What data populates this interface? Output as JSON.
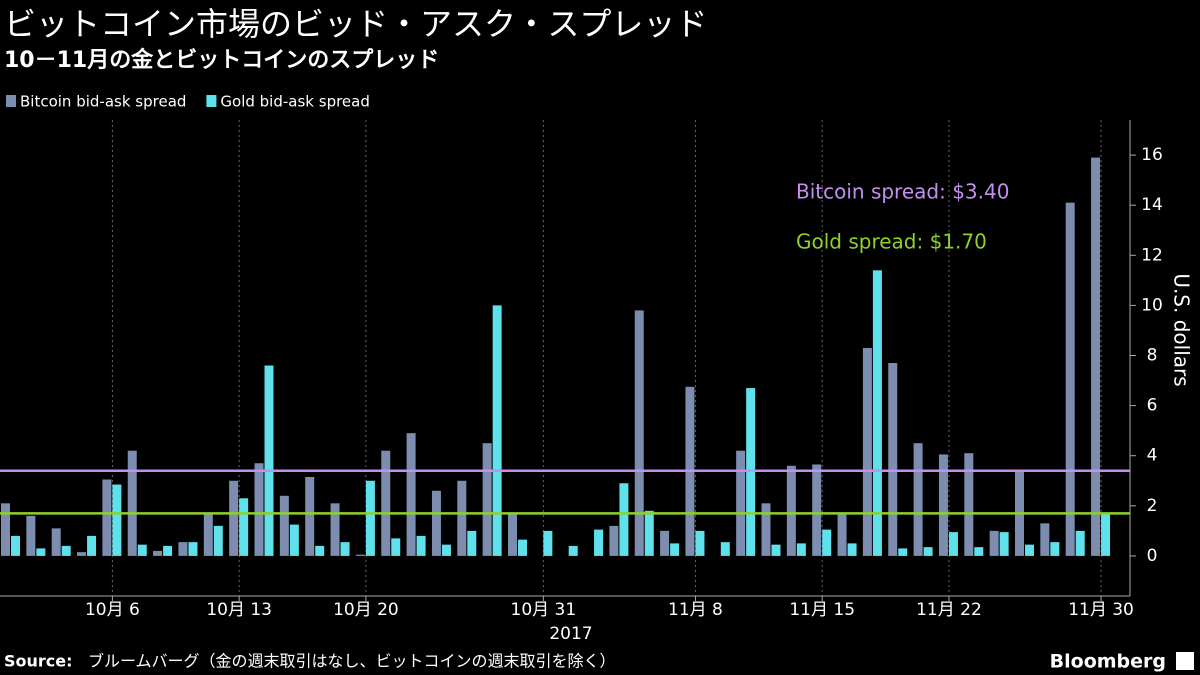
{
  "chart_data": {
    "type": "bar",
    "title": "ビットコイン市場のビッド・アスク・スプレッド",
    "subtitle": "10－11月の金とビットコインのスプレッド",
    "y_axis_label": "U.S. dollars",
    "x_axis_year": "2017",
    "categories": [
      null,
      null,
      null,
      null,
      "10月 6",
      null,
      null,
      null,
      null,
      "10月 13",
      null,
      null,
      null,
      null,
      "10月 20",
      null,
      null,
      null,
      null,
      null,
      null,
      "10月 31",
      null,
      null,
      null,
      null,
      null,
      "11月 8",
      null,
      null,
      null,
      null,
      "11月 15",
      null,
      null,
      null,
      null,
      "11月 22",
      null,
      null,
      null,
      null,
      null,
      "11月 30"
    ],
    "series": [
      {
        "name": "Bitcoin bid-ask spread",
        "color": "#7d8db0",
        "values": [
          2.1,
          1.6,
          1.1,
          0.15,
          3.05,
          4.2,
          0.2,
          0.55,
          1.7,
          3.0,
          3.7,
          2.4,
          3.15,
          2.1,
          0.05,
          4.2,
          4.9,
          2.6,
          3.0,
          4.5,
          1.7,
          0,
          0,
          0,
          1.2,
          9.8,
          1.0,
          6.75,
          0,
          4.2,
          2.1,
          3.6,
          3.65,
          1.7,
          8.3,
          7.7,
          4.5,
          4.05,
          4.1,
          1.0,
          3.4,
          1.3,
          14.1,
          15.9
        ]
      },
      {
        "name": "Gold bid-ask spread",
        "color": "#5ee1ea",
        "values": [
          0.8,
          0.3,
          0.4,
          0.8,
          2.85,
          0.45,
          0.4,
          0.55,
          1.2,
          2.3,
          7.6,
          1.25,
          0.4,
          0.55,
          3.0,
          0.7,
          0.8,
          0.45,
          1.0,
          10.0,
          0.65,
          1.0,
          0.4,
          1.05,
          2.9,
          1.8,
          0.5,
          1.0,
          0.55,
          6.7,
          0.45,
          0.5,
          1.05,
          0.5,
          11.4,
          0.3,
          0.35,
          0.95,
          0.35,
          0.95,
          0.45,
          0.55,
          1.0,
          1.7
        ]
      }
    ],
    "reference_lines": [
      {
        "name": "Bitcoin spread: $3.40",
        "value": 3.4,
        "color": "#c490f0"
      },
      {
        "name": "Gold spread: $1.70",
        "value": 1.7,
        "color": "#8fd12a"
      }
    ],
    "ylim": [
      -1.6,
      17.4
    ],
    "yticks": [
      0,
      2,
      4,
      6,
      8,
      10,
      12,
      14,
      16
    ],
    "legend": "top-left",
    "source_label": "Source:",
    "source_text": "ブルームバーグ（金の週末取引はなし、ビットコインの週末取引を除く）",
    "brand": "Bloomberg"
  }
}
